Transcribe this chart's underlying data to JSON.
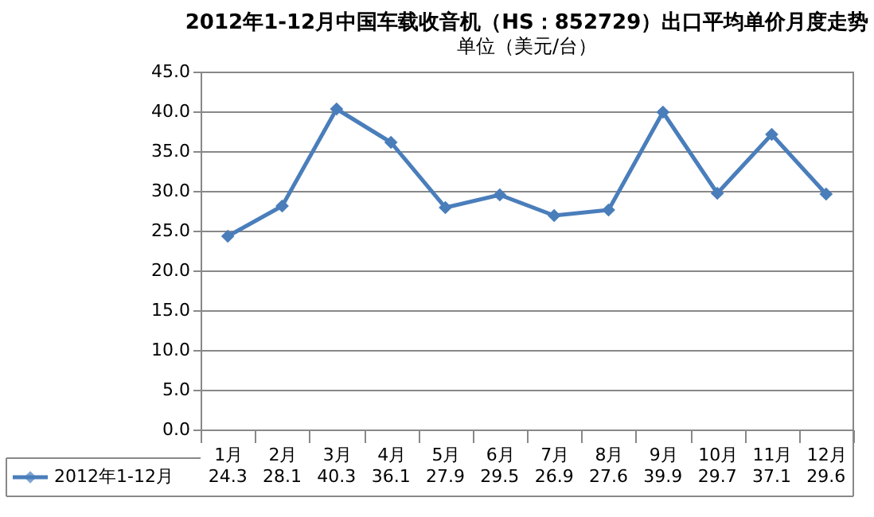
{
  "chart_data": {
    "type": "line",
    "title": "2012年1-12月中国车载收音机（HS：852729）出口平均单价月度走势",
    "subtitle": "单位（美元/台）",
    "categories": [
      "1月",
      "2月",
      "3月",
      "4月",
      "5月",
      "6月",
      "7月",
      "8月",
      "9月",
      "10月",
      "11月",
      "12月"
    ],
    "series": [
      {
        "name": "2012年1-12月",
        "color": "#4a7ebb",
        "values": [
          24.3,
          28.1,
          40.3,
          36.1,
          27.9,
          29.5,
          26.9,
          27.6,
          39.9,
          29.7,
          37.1,
          29.6
        ]
      }
    ],
    "ylim": [
      0,
      45
    ],
    "yticks": [
      {
        "value": 0,
        "label": "0.0"
      },
      {
        "value": 5,
        "label": "5.0"
      },
      {
        "value": 10,
        "label": "10.0"
      },
      {
        "value": 15,
        "label": "15.0"
      },
      {
        "value": 20,
        "label": "20.0"
      },
      {
        "value": 25,
        "label": "25.0"
      },
      {
        "value": 30,
        "label": "30.0"
      },
      {
        "value": 35,
        "label": "35.0"
      },
      {
        "value": 40,
        "label": "40.0"
      },
      {
        "value": 45,
        "label": "45.0"
      }
    ],
    "grid": "y",
    "marker": "diamond",
    "line_style": "solid",
    "data_labels": true,
    "legend": "bottom"
  }
}
